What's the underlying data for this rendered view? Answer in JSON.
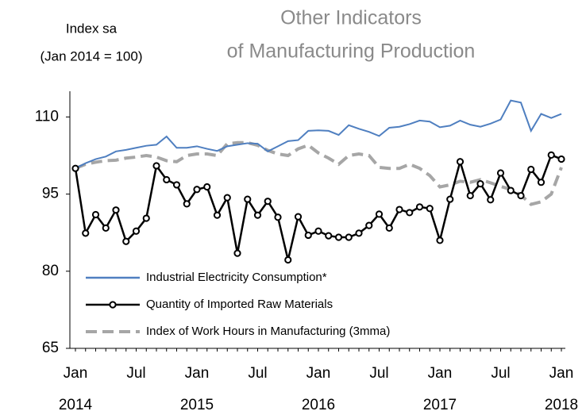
{
  "chart_data": {
    "type": "line",
    "title": [
      "Other Indicators",
      "of Manufacturing Production"
    ],
    "y_axis_label": [
      "Index sa",
      "(Jan 2014 = 100)"
    ],
    "categories": [
      "Jan",
      null,
      null,
      null,
      null,
      null,
      "Jul",
      null,
      null,
      null,
      null,
      null,
      "Jan",
      null,
      null,
      null,
      null,
      null,
      "Jul",
      null,
      null,
      null,
      null,
      null,
      "Jan",
      null,
      null,
      null,
      null,
      null,
      "Jul",
      null,
      null,
      null,
      null,
      null,
      "Jan",
      null,
      null,
      null,
      null,
      null,
      "Jul",
      null,
      null,
      null,
      null,
      null,
      "Jan"
    ],
    "x_year_labels": [
      "2014",
      "2015",
      "2016",
      "2017",
      "2018"
    ],
    "ylim": [
      65,
      115
    ],
    "yticks": [
      65,
      80,
      95,
      110
    ],
    "legend": "lower left",
    "series": [
      {
        "name": "Industrial Electricity Consumption*",
        "color": "#4f7fc0",
        "style": "solid",
        "markers": false,
        "values": [
          100,
          101,
          101.8,
          102.3,
          103.3,
          103.6,
          104,
          104.4,
          104.6,
          106.2,
          104,
          104,
          104.3,
          103.8,
          103.4,
          104.3,
          104.6,
          104.9,
          104.8,
          103.3,
          104.3,
          105.3,
          105.5,
          107.3,
          107.4,
          107.3,
          106.5,
          108.4,
          107.7,
          107.1,
          106.3,
          107.9,
          108.1,
          108.6,
          109.3,
          109.1,
          108,
          108.3,
          109.3,
          108.5,
          108.1,
          108.7,
          109.5,
          113.2,
          112.8,
          107.3,
          110.6,
          109.8,
          110.6
        ]
      },
      {
        "name": "Quantity of Imported Raw Materials",
        "color": "#000000",
        "style": "solid",
        "markers": true,
        "values": [
          100,
          87.4,
          91,
          88.4,
          91.9,
          85.8,
          87.8,
          90.3,
          100.5,
          97.8,
          96.8,
          93.1,
          95.9,
          96.4,
          90.9,
          94.3,
          83.5,
          94,
          90.9,
          93.6,
          90.5,
          82.2,
          90.6,
          87,
          87.8,
          86.9,
          86.6,
          86.6,
          87.4,
          88.9,
          91.1,
          88.4,
          92,
          91.4,
          92.5,
          92.2,
          86,
          94,
          101.3,
          94.7,
          97,
          93.9,
          99.1,
          95.7,
          94.7,
          99.8,
          97.3,
          102.6,
          101.8
        ]
      },
      {
        "name": "Index of Work Hours in Manufacturing (3mma)",
        "color": "#a6a6a6",
        "style": "dashed",
        "markers": false,
        "values": [
          100,
          100.8,
          101.2,
          101.5,
          101.6,
          102,
          102.2,
          102.5,
          102.2,
          101.5,
          101.3,
          102.5,
          102.8,
          102.8,
          102.5,
          104.8,
          105,
          105,
          104.5,
          103.5,
          102.8,
          102.5,
          103.8,
          104.5,
          103,
          102,
          100.8,
          102.5,
          102.8,
          102.5,
          100.2,
          100,
          100,
          100.8,
          100,
          98.6,
          96.4,
          96.8,
          97.5,
          97.3,
          97.8,
          97.2,
          96.5,
          95.9,
          94.8,
          93,
          93.5,
          95,
          100.2
        ]
      }
    ]
  }
}
